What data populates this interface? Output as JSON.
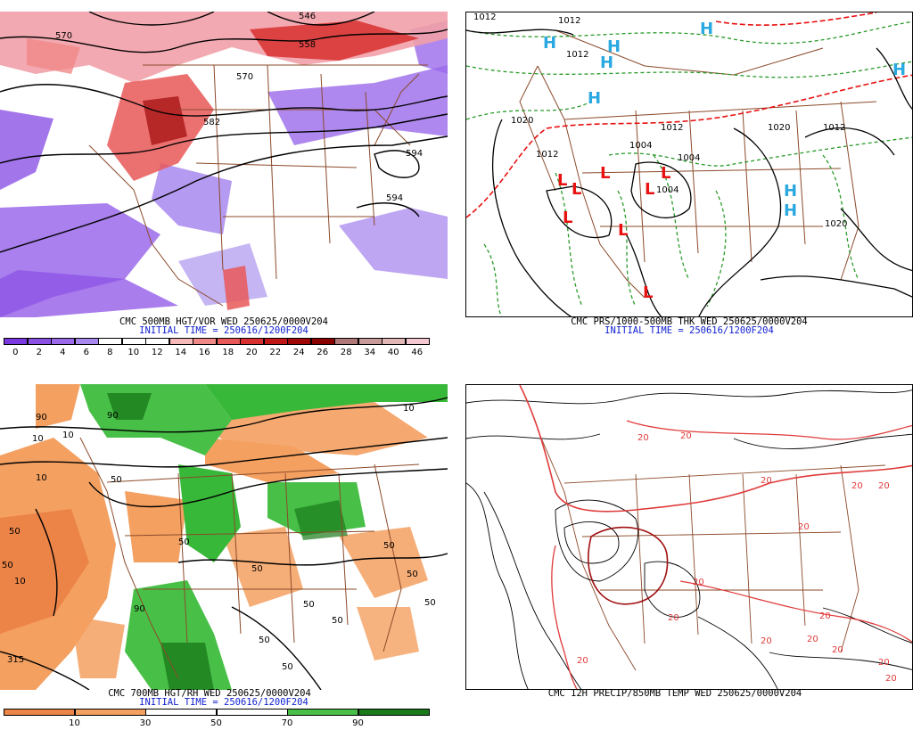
{
  "colors": {
    "purple": "#8b6ae8",
    "light_purple": "#b7a2f0",
    "pink": "#f2a0a8",
    "red": "#e03a3a",
    "dark_red": "#a01010",
    "brown_border": "#8b4a2a",
    "green_dash": "#2a9a2a",
    "blue_H": "#2aa8e0",
    "red_L": "#e81010",
    "orange": "#f4a060",
    "dark_orange": "#ec8448",
    "green": "#38b838",
    "dark_green": "#1a7a1a",
    "blue_text": "#1020d0"
  },
  "panels": {
    "vort": {
      "title": "CMC 500MB HGT/VOR WED 250625/0000V204",
      "initial": "INITIAL TIME = 250616/1200F204",
      "labels": [
        "570",
        "546",
        "558",
        "570",
        "582",
        "594",
        "594"
      ],
      "colorbar": {
        "colors": [
          "#7a38e0",
          "#8c52e6",
          "#9a6aea",
          "#a888ee",
          "#ffffff",
          "#ffffff",
          "#ffffff",
          "#f6b8b8",
          "#f08888",
          "#e85858",
          "#d83030",
          "#c01818",
          "#a00808",
          "#880000",
          "#b07878",
          "#c89a9a",
          "#e0b6b6",
          "#f4c8d0"
        ],
        "ticks": [
          "0",
          "2",
          "4",
          "6",
          "8",
          "10",
          "12",
          "14",
          "16",
          "18",
          "20",
          "22",
          "24",
          "26",
          "28",
          "34",
          "40",
          "46"
        ]
      }
    },
    "pres": {
      "title": "CMC PRS/1000-500MB THK WED 250625/0000V204",
      "initial": "INITIAL TIME = 250616/1200F204",
      "labels": [
        "1012",
        "1012",
        "1012",
        "1020",
        "1012",
        "1012",
        "1004",
        "1004",
        "1004",
        "1012",
        "1020",
        "1020"
      ],
      "highs": [
        "H",
        "H",
        "H",
        "H",
        "H",
        "H",
        "H",
        "H"
      ],
      "lows": [
        "L",
        "L",
        "L",
        "L",
        "L",
        "L",
        "L",
        "L"
      ]
    },
    "rh": {
      "title": "CMC 700MB HGT/RH WED 250625/0000V204",
      "initial": "INITIAL TIME = 250616/1200F204",
      "labels": [
        "10",
        "50",
        "10",
        "10",
        "50",
        "90",
        "50",
        "50",
        "50",
        "90",
        "90",
        "50",
        "10",
        "315",
        "50",
        "50",
        "50",
        "50",
        "50",
        "10",
        "50"
      ],
      "colorbar": {
        "colors": [
          "#ec8448",
          "#f4a060",
          "#ffffff",
          "#ffffff",
          "#48c048",
          "#1a7a1a"
        ],
        "ticks": [
          "10",
          "30",
          "50",
          "70",
          "90"
        ]
      }
    },
    "precip": {
      "title": "CMC 12H PRECIP/850MB TEMP WED 250625/0000V204",
      "labels": [
        "20",
        "20",
        "20",
        "20",
        "20",
        "20",
        "20",
        "20",
        "20",
        "20",
        "20",
        "20",
        "20",
        "20",
        "20"
      ]
    }
  }
}
